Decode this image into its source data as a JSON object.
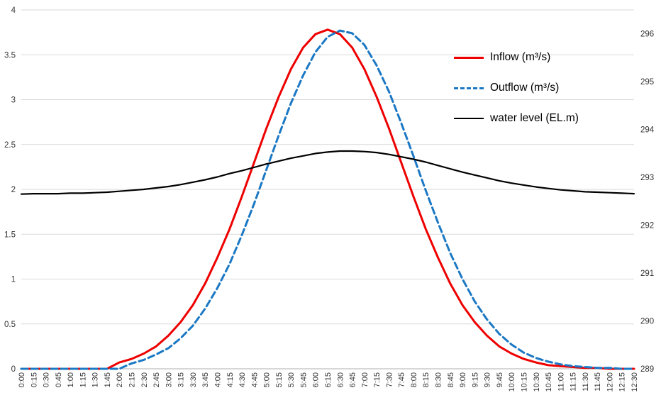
{
  "chart_data": {
    "type": "line",
    "title": "",
    "xlabel": "",
    "ylabel_left": "",
    "ylabel_right": "",
    "grid": "horizontal",
    "legend_position": "inside-right",
    "colors": {
      "inflow": "#ee0000",
      "outflow": "#1b78c4",
      "water_level": "#000000",
      "grid": "#d9d9d9",
      "axis_line": "#bfbfbf",
      "tick_label": "#333333"
    },
    "left_axis": {
      "min": 0,
      "max": 4,
      "ticks": [
        0,
        0.5,
        1,
        1.5,
        2,
        2.5,
        3,
        3.5,
        4
      ]
    },
    "right_axis": {
      "min": 289,
      "max": 296.5,
      "ticks": [
        289,
        290,
        291,
        292,
        293,
        294,
        295,
        296
      ]
    },
    "x": [
      "0:00",
      "0:15",
      "0:30",
      "0:45",
      "1:00",
      "1:15",
      "1:30",
      "1:45",
      "2:00",
      "2:15",
      "2:30",
      "2:45",
      "3:00",
      "3:15",
      "3:30",
      "3:45",
      "4:00",
      "4:15",
      "4:30",
      "4:45",
      "5:00",
      "5:15",
      "5:30",
      "5:45",
      "6:00",
      "6:15",
      "6:30",
      "6:45",
      "7:00",
      "7:15",
      "7:30",
      "7:45",
      "8:00",
      "8:15",
      "8:30",
      "8:45",
      "9:00",
      "9:15",
      "9:30",
      "9:45",
      "10:00",
      "10:15",
      "10:30",
      "10:45",
      "11:00",
      "11:15",
      "11:30",
      "11:45",
      "12:00",
      "12:15",
      "12:30"
    ],
    "series": [
      {
        "name": "Inflow (m³/s)",
        "axis": "left",
        "color": "#ee0000",
        "style": "solid",
        "values": [
          0,
          0,
          0,
          0,
          0,
          0,
          0,
          0,
          0.07,
          0.11,
          0.17,
          0.25,
          0.37,
          0.52,
          0.71,
          0.95,
          1.24,
          1.56,
          1.92,
          2.3,
          2.68,
          3.03,
          3.34,
          3.58,
          3.73,
          3.78,
          3.73,
          3.58,
          3.34,
          3.03,
          2.68,
          2.3,
          1.92,
          1.56,
          1.24,
          0.95,
          0.71,
          0.52,
          0.37,
          0.25,
          0.17,
          0.11,
          0.07,
          0.04,
          0.03,
          0.02,
          0.01,
          0.01,
          0,
          0,
          0
        ]
      },
      {
        "name": "Outflow (m³/s)",
        "axis": "left",
        "color": "#1b78c4",
        "style": "dashed",
        "values": [
          0,
          0,
          0,
          0,
          0,
          0,
          0,
          0,
          0,
          0.06,
          0.1,
          0.16,
          0.23,
          0.34,
          0.48,
          0.67,
          0.9,
          1.17,
          1.49,
          1.84,
          2.22,
          2.6,
          2.96,
          3.27,
          3.53,
          3.7,
          3.77,
          3.74,
          3.61,
          3.38,
          3.09,
          2.74,
          2.37,
          1.99,
          1.63,
          1.29,
          1.0,
          0.75,
          0.55,
          0.39,
          0.27,
          0.18,
          0.12,
          0.08,
          0.05,
          0.03,
          0.02,
          0.01,
          0.01,
          0,
          0
        ]
      },
      {
        "name": "water level (EL.m)",
        "axis": "right",
        "color": "#000000",
        "style": "solid",
        "values": [
          292.65,
          292.66,
          292.66,
          292.66,
          292.67,
          292.67,
          292.68,
          292.69,
          292.71,
          292.73,
          292.75,
          292.78,
          292.81,
          292.85,
          292.9,
          292.95,
          293.01,
          293.08,
          293.14,
          293.21,
          293.28,
          293.34,
          293.4,
          293.45,
          293.5,
          293.53,
          293.55,
          293.55,
          293.54,
          293.52,
          293.48,
          293.43,
          293.38,
          293.32,
          293.25,
          293.18,
          293.11,
          293.05,
          292.99,
          292.93,
          292.88,
          292.84,
          292.8,
          292.77,
          292.74,
          292.72,
          292.7,
          292.69,
          292.68,
          292.67,
          292.66
        ]
      }
    ]
  }
}
